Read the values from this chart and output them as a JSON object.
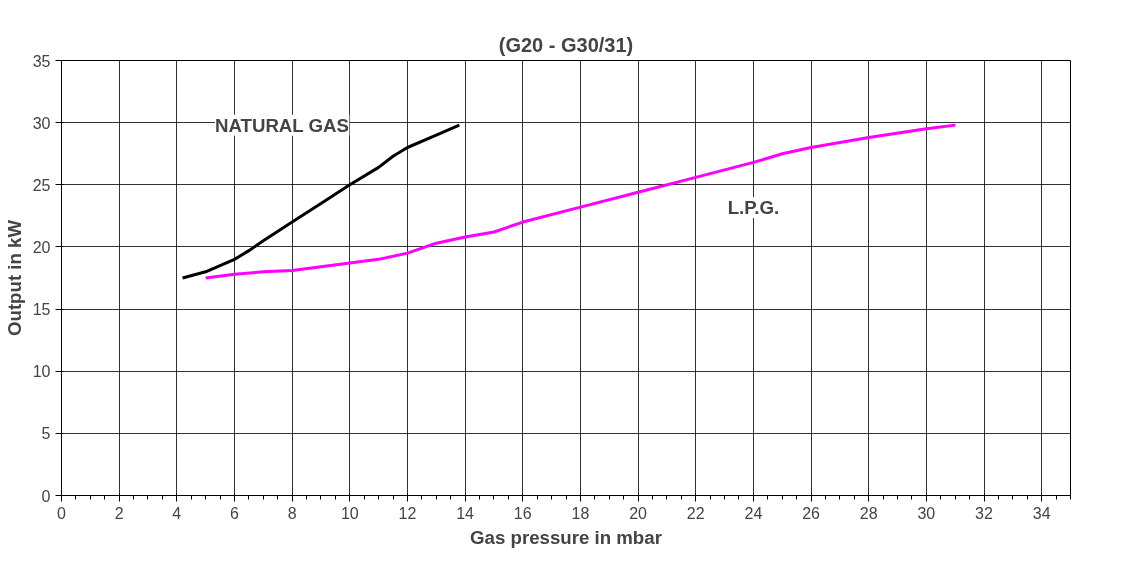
{
  "chart_data": {
    "type": "line",
    "title": "(G20 - G30/31)",
    "xlabel": "Gas pressure in mbar",
    "ylabel": "Output in kW",
    "xlim": [
      0,
      35
    ],
    "xticks": [
      0,
      2,
      4,
      6,
      8,
      10,
      12,
      14,
      16,
      18,
      20,
      22,
      24,
      26,
      28,
      30,
      32,
      34
    ],
    "ylim": [
      0,
      35
    ],
    "yticks": [
      0,
      5,
      10,
      15,
      20,
      25,
      30,
      35
    ],
    "grid": true,
    "marker": "none",
    "line_style": "solid",
    "series": [
      {
        "name": "NATURAL GAS",
        "color": "#000000",
        "x": [
          4.2,
          5,
          6,
          6.5,
          7,
          8,
          9,
          10,
          11,
          11.5,
          12,
          13,
          13.8
        ],
        "values": [
          17.5,
          18,
          19,
          19.7,
          20.5,
          22,
          23.5,
          25,
          26.4,
          27.3,
          28,
          29,
          29.8
        ]
      },
      {
        "name": "L.P.G.",
        "color": "#ff00ff",
        "x": [
          5,
          6,
          7,
          8,
          9,
          10,
          11,
          12,
          13,
          14,
          15,
          16,
          18,
          20,
          22,
          24,
          25,
          26,
          28,
          30,
          31
        ],
        "values": [
          17.5,
          17.8,
          18,
          18.1,
          18.4,
          18.7,
          19,
          19.5,
          20.3,
          20.8,
          21.2,
          22,
          23.2,
          24.4,
          25.6,
          26.8,
          27.5,
          28,
          28.8,
          29.5,
          29.8
        ]
      }
    ]
  }
}
